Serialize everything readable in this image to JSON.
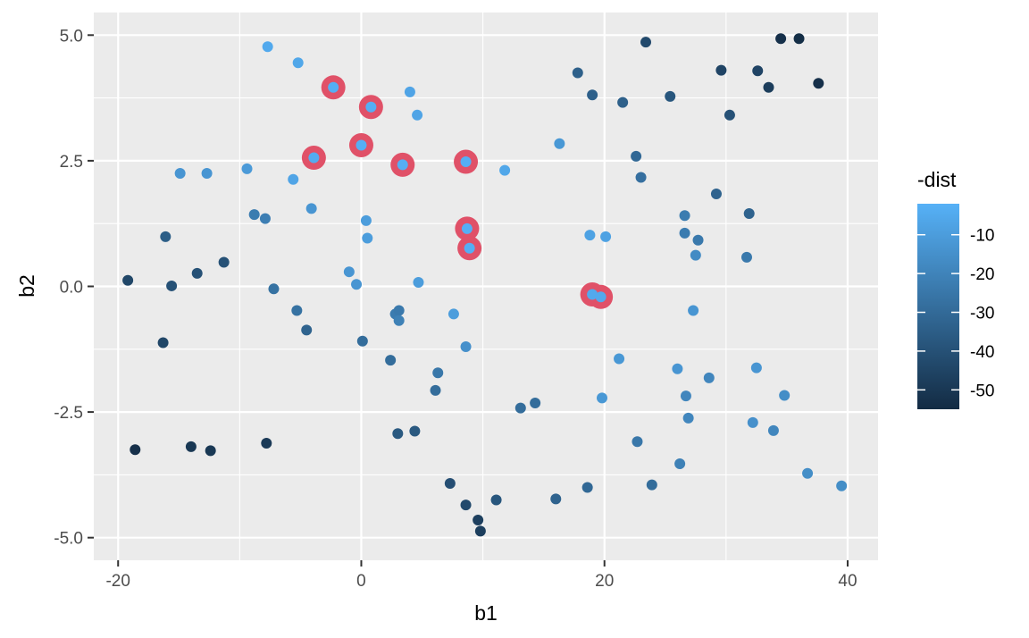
{
  "chart_data": {
    "type": "scatter",
    "xlabel": "b1",
    "ylabel": "b2",
    "xlim": [
      -22,
      42.5
    ],
    "ylim": [
      -5.45,
      5.45
    ],
    "x_ticks": [
      -20,
      0,
      20,
      40
    ],
    "x_tick_labels": [
      "-20",
      "0",
      "20",
      "40"
    ],
    "y_ticks": [
      -5.0,
      -2.5,
      0.0,
      2.5,
      5.0
    ],
    "y_tick_labels": [
      "-5.0",
      "-2.5",
      "0.0",
      "2.5",
      "5.0"
    ],
    "grid": true,
    "legend": {
      "title": "-dist",
      "placement": "right",
      "type": "colorbar",
      "range": [
        -55,
        -2
      ],
      "ticks": [
        -10,
        -20,
        -30,
        -40,
        -50
      ],
      "tick_labels": [
        "-10",
        "-20",
        "-30",
        "-40",
        "-50"
      ],
      "color_low": "#132B43",
      "color_high": "#56B1F7"
    },
    "highlight_color": "#E05168",
    "points": [
      {
        "x": -7.7,
        "y": 4.77,
        "v": -5
      },
      {
        "x": -5.2,
        "y": 4.45,
        "v": -6
      },
      {
        "x": -2.3,
        "y": 3.96,
        "v": -3,
        "h": true
      },
      {
        "x": 0.8,
        "y": 3.57,
        "v": -3,
        "h": true
      },
      {
        "x": 4.0,
        "y": 3.87,
        "v": -7
      },
      {
        "x": 4.6,
        "y": 3.41,
        "v": -7
      },
      {
        "x": 0.0,
        "y": 2.81,
        "v": -3,
        "h": true
      },
      {
        "x": -3.9,
        "y": 2.56,
        "v": -4,
        "h": true
      },
      {
        "x": 3.4,
        "y": 2.42,
        "v": -3,
        "h": true
      },
      {
        "x": 8.6,
        "y": 2.48,
        "v": -3,
        "h": true
      },
      {
        "x": 11.8,
        "y": 2.31,
        "v": -6
      },
      {
        "x": 8.7,
        "y": 1.15,
        "v": -3,
        "h": true
      },
      {
        "x": 8.9,
        "y": 0.76,
        "v": -3,
        "h": true
      },
      {
        "x": 19.0,
        "y": -0.16,
        "v": -5,
        "h": true
      },
      {
        "x": 19.7,
        "y": -0.21,
        "v": -5,
        "h": true
      },
      {
        "x": -5.6,
        "y": 2.13,
        "v": -7
      },
      {
        "x": -9.4,
        "y": 2.34,
        "v": -11
      },
      {
        "x": -14.9,
        "y": 2.25,
        "v": -13
      },
      {
        "x": -12.7,
        "y": 2.25,
        "v": -13
      },
      {
        "x": -4.1,
        "y": 1.55,
        "v": -13
      },
      {
        "x": -8.8,
        "y": 1.43,
        "v": -23
      },
      {
        "x": -7.9,
        "y": 1.35,
        "v": -22
      },
      {
        "x": 0.4,
        "y": 1.31,
        "v": -10
      },
      {
        "x": 0.5,
        "y": 0.96,
        "v": -10
      },
      {
        "x": -1.0,
        "y": 0.29,
        "v": -13
      },
      {
        "x": -0.4,
        "y": 0.04,
        "v": -13
      },
      {
        "x": 4.7,
        "y": 0.08,
        "v": -10
      },
      {
        "x": -7.2,
        "y": -0.05,
        "v": -27
      },
      {
        "x": -5.3,
        "y": -0.48,
        "v": -27
      },
      {
        "x": -4.5,
        "y": -0.87,
        "v": -33
      },
      {
        "x": 2.8,
        "y": -0.55,
        "v": -23
      },
      {
        "x": 3.1,
        "y": -0.48,
        "v": -24
      },
      {
        "x": 3.1,
        "y": -0.68,
        "v": -21
      },
      {
        "x": 0.1,
        "y": -1.09,
        "v": -29
      },
      {
        "x": 7.6,
        "y": -0.55,
        "v": -10
      },
      {
        "x": 8.6,
        "y": -1.2,
        "v": -15
      },
      {
        "x": 2.4,
        "y": -1.47,
        "v": -29
      },
      {
        "x": 6.3,
        "y": -1.72,
        "v": -25
      },
      {
        "x": 6.1,
        "y": -2.07,
        "v": -29
      },
      {
        "x": -16.1,
        "y": 0.99,
        "v": -35
      },
      {
        "x": -11.3,
        "y": 0.48,
        "v": -40
      },
      {
        "x": -13.5,
        "y": 0.26,
        "v": -40
      },
      {
        "x": -15.6,
        "y": 0.01,
        "v": -40
      },
      {
        "x": -19.2,
        "y": 0.12,
        "v": -44
      },
      {
        "x": -16.3,
        "y": -1.12,
        "v": -44
      },
      {
        "x": -18.6,
        "y": -3.25,
        "v": -53
      },
      {
        "x": -14.0,
        "y": -3.19,
        "v": -50
      },
      {
        "x": -12.4,
        "y": -3.27,
        "v": -50
      },
      {
        "x": -7.8,
        "y": -3.12,
        "v": -49
      },
      {
        "x": 3.0,
        "y": -2.93,
        "v": -37
      },
      {
        "x": 4.4,
        "y": -2.88,
        "v": -37
      },
      {
        "x": 13.1,
        "y": -2.42,
        "v": -29
      },
      {
        "x": 14.3,
        "y": -2.32,
        "v": -29
      },
      {
        "x": 16.3,
        "y": 2.84,
        "v": -12
      },
      {
        "x": 18.8,
        "y": 1.02,
        "v": -8
      },
      {
        "x": 20.1,
        "y": 0.99,
        "v": -8
      },
      {
        "x": 21.2,
        "y": -1.44,
        "v": -12
      },
      {
        "x": 19.8,
        "y": -2.22,
        "v": -12
      },
      {
        "x": 17.8,
        "y": 4.25,
        "v": -34
      },
      {
        "x": 19.0,
        "y": 3.81,
        "v": -34
      },
      {
        "x": 21.5,
        "y": 3.66,
        "v": -34
      },
      {
        "x": 23.4,
        "y": 4.86,
        "v": -43
      },
      {
        "x": 25.4,
        "y": 3.78,
        "v": -38
      },
      {
        "x": 22.6,
        "y": 2.59,
        "v": -31
      },
      {
        "x": 23.0,
        "y": 2.17,
        "v": -28
      },
      {
        "x": 29.6,
        "y": 4.3,
        "v": -45
      },
      {
        "x": 32.6,
        "y": 4.29,
        "v": -45
      },
      {
        "x": 33.5,
        "y": 3.96,
        "v": -48
      },
      {
        "x": 34.5,
        "y": 4.93,
        "v": -53
      },
      {
        "x": 36.0,
        "y": 4.93,
        "v": -54
      },
      {
        "x": 37.6,
        "y": 4.04,
        "v": -53
      },
      {
        "x": 30.3,
        "y": 3.41,
        "v": -40
      },
      {
        "x": 29.2,
        "y": 1.84,
        "v": -33
      },
      {
        "x": 31.9,
        "y": 1.45,
        "v": -33
      },
      {
        "x": 26.6,
        "y": 1.41,
        "v": -23
      },
      {
        "x": 26.6,
        "y": 1.06,
        "v": -23
      },
      {
        "x": 27.7,
        "y": 0.92,
        "v": -24
      },
      {
        "x": 27.5,
        "y": 0.62,
        "v": -17
      },
      {
        "x": 31.7,
        "y": 0.58,
        "v": -24
      },
      {
        "x": 27.3,
        "y": -0.48,
        "v": -13
      },
      {
        "x": 26.0,
        "y": -1.64,
        "v": -13
      },
      {
        "x": 26.7,
        "y": -2.18,
        "v": -19
      },
      {
        "x": 28.6,
        "y": -1.82,
        "v": -19
      },
      {
        "x": 32.5,
        "y": -1.62,
        "v": -13
      },
      {
        "x": 34.8,
        "y": -2.17,
        "v": -16
      },
      {
        "x": 26.9,
        "y": -2.62,
        "v": -19
      },
      {
        "x": 32.2,
        "y": -2.71,
        "v": -15
      },
      {
        "x": 33.9,
        "y": -2.87,
        "v": -19
      },
      {
        "x": 22.7,
        "y": -3.09,
        "v": -25
      },
      {
        "x": 26.2,
        "y": -3.53,
        "v": -21
      },
      {
        "x": 36.7,
        "y": -3.72,
        "v": -16
      },
      {
        "x": 39.5,
        "y": -3.97,
        "v": -16
      },
      {
        "x": 23.9,
        "y": -3.95,
        "v": -29
      },
      {
        "x": 18.6,
        "y": -4.0,
        "v": -31
      },
      {
        "x": 16.0,
        "y": -4.23,
        "v": -33
      },
      {
        "x": 11.1,
        "y": -4.25,
        "v": -38
      },
      {
        "x": 7.3,
        "y": -3.92,
        "v": -41
      },
      {
        "x": 8.6,
        "y": -4.35,
        "v": -43
      },
      {
        "x": 9.6,
        "y": -4.65,
        "v": -47
      },
      {
        "x": 9.8,
        "y": -4.87,
        "v": -47
      }
    ]
  }
}
